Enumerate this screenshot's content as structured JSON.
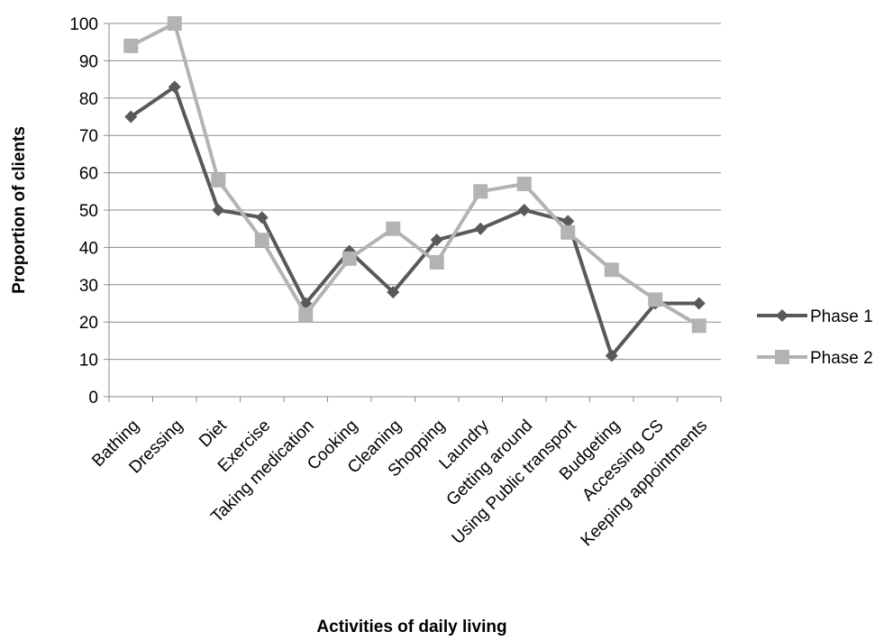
{
  "chart_data": {
    "type": "line",
    "xlabel": "Activities of daily living",
    "ylabel": "Proportion of clients",
    "ylim": [
      0,
      100
    ],
    "yticks": [
      0,
      10,
      20,
      30,
      40,
      50,
      60,
      70,
      80,
      90,
      100
    ],
    "grid": "horizontal",
    "legend_position": "right",
    "categories": [
      "Bathing",
      "Dressing",
      "Diet",
      "Exercise",
      "Taking medication",
      "Cooking",
      "Cleaning",
      "Shopping",
      "Laundry",
      "Getting around",
      "Using Public transport",
      "Budgeting",
      "Accessing CS",
      "Keeping appointments"
    ],
    "series": [
      {
        "name": "Phase 1",
        "marker": "diamond",
        "color": "#595959",
        "values": [
          75,
          83,
          50,
          48,
          25,
          39,
          28,
          42,
          45,
          50,
          47,
          11,
          25,
          25
        ]
      },
      {
        "name": "Phase 2",
        "marker": "square",
        "color": "#b3b3b3",
        "values": [
          94,
          100,
          58,
          42,
          22,
          37,
          45,
          36,
          55,
          57,
          44,
          34,
          26,
          19
        ]
      }
    ]
  }
}
